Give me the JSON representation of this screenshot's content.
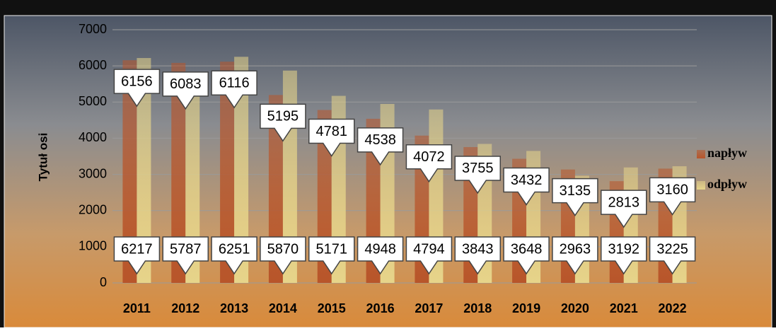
{
  "chart_data": {
    "type": "bar",
    "y_axis_label": "Tytuł osi",
    "categories": [
      "2011",
      "2012",
      "2013",
      "2014",
      "2015",
      "2016",
      "2017",
      "2018",
      "2019",
      "2020",
      "2021",
      "2022"
    ],
    "series": [
      {
        "name": "napływ",
        "color": "#b8552a",
        "values": [
          6156,
          6083,
          6116,
          5195,
          4781,
          4538,
          4072,
          3755,
          3432,
          3135,
          2813,
          3160
        ]
      },
      {
        "name": "odpływ",
        "color": "#e6d48a",
        "values": [
          6217,
          5787,
          6251,
          5870,
          5171,
          4948,
          4794,
          3843,
          3648,
          2963,
          3192,
          3225
        ]
      }
    ],
    "ylim": [
      0,
      7000
    ],
    "yticks": [
      0,
      1000,
      2000,
      3000,
      4000,
      5000,
      6000,
      7000
    ],
    "grid": true,
    "legend": "right"
  }
}
